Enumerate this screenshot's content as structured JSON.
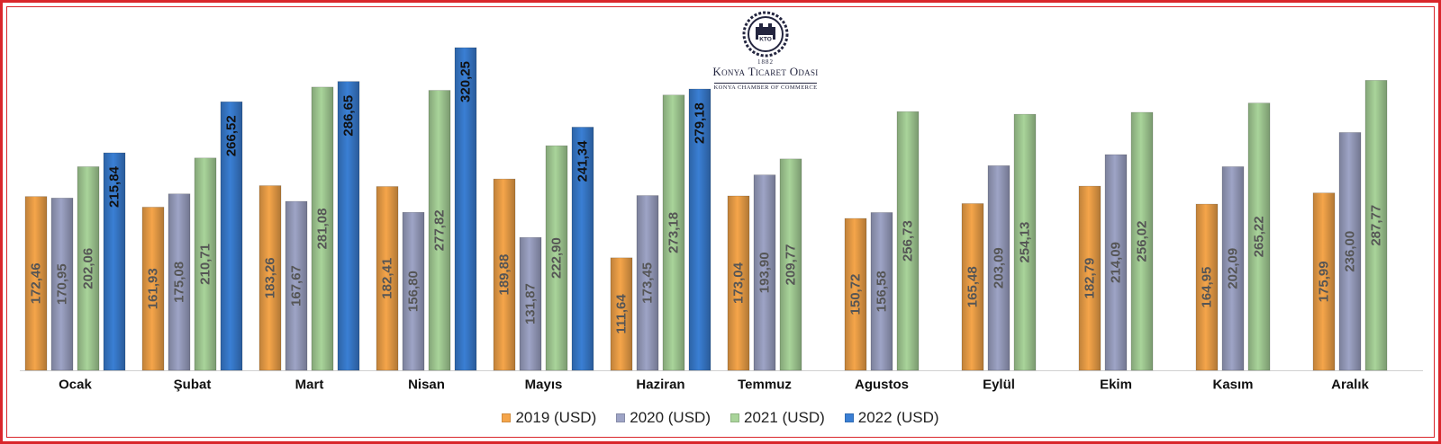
{
  "logo": {
    "year": "1882",
    "name": "Konya Ticaret Odası",
    "name_en": "Konya Chamber of Commerce",
    "mark": "KTO"
  },
  "chart_data": {
    "type": "bar",
    "categories": [
      "Ocak",
      "Şubat",
      "Mart",
      "Nisan",
      "Mayıs",
      "Haziran",
      "Temmuz",
      "Agustos",
      "Eylül",
      "Ekim",
      "Kasım",
      "Aralık"
    ],
    "series": [
      {
        "name": "2019 (USD)",
        "color": "#f5a54a",
        "values": [
          172.46,
          161.93,
          183.26,
          182.41,
          189.88,
          111.64,
          173.04,
          150.72,
          165.48,
          182.79,
          164.95,
          175.99
        ],
        "labels": [
          "172,46",
          "161,93",
          "183,26",
          "182,41",
          "189,88",
          "111,64",
          "173,04",
          "150,72",
          "165,48",
          "182,79",
          "164,95",
          "175,99"
        ]
      },
      {
        "name": "2020 (USD)",
        "color": "#9ea4c6",
        "values": [
          170.95,
          175.08,
          167.67,
          156.8,
          131.87,
          173.45,
          193.9,
          156.58,
          203.09,
          214.09,
          202.09,
          236.0
        ],
        "labels": [
          "170,95",
          "175,08",
          "167,67",
          "156,80",
          "131,87",
          "173,45",
          "193,90",
          "156,58",
          "203,09",
          "214,09",
          "202,09",
          "236,00"
        ]
      },
      {
        "name": "2021 (USD)",
        "color": "#a9d49a",
        "values": [
          202.06,
          210.71,
          281.08,
          277.82,
          222.9,
          273.18,
          209.77,
          256.73,
          254.13,
          256.02,
          265.22,
          287.77
        ],
        "labels": [
          "202,06",
          "210,71",
          "281,08",
          "277,82",
          "222,90",
          "273,18",
          "209,77",
          "256,73",
          "254,13",
          "256,02",
          "265,22",
          "287,77"
        ]
      },
      {
        "name": "2022 (USD)",
        "color": "#3a7fd4",
        "values": [
          215.84,
          266.52,
          286.65,
          320.25,
          241.34,
          279.18,
          null,
          null,
          null,
          null,
          null,
          null
        ],
        "labels": [
          "215,84",
          "266,52",
          "286,65",
          "320,25",
          "241,34",
          "279,18",
          null,
          null,
          null,
          null,
          null,
          null
        ]
      }
    ],
    "ylim": [
      0,
      320.25
    ],
    "grid": false,
    "legend": "bottom"
  }
}
